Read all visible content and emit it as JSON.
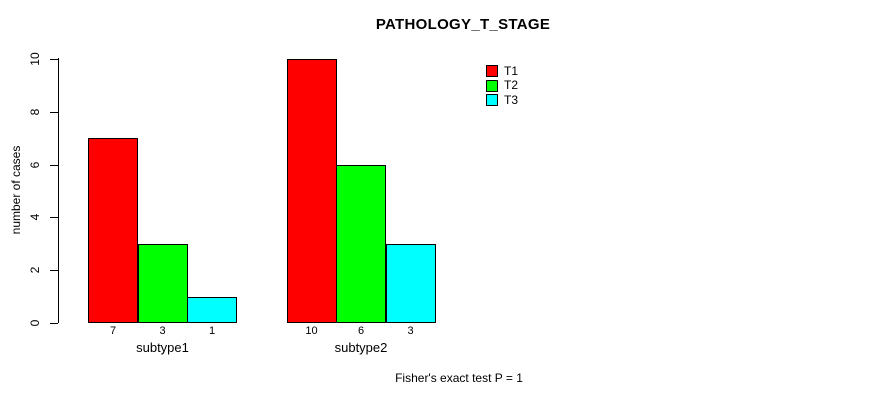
{
  "chart": {
    "background_color": "#ffffff",
    "axis_color": "#000000",
    "text_color": "#000000"
  },
  "chart_data": {
    "type": "bar",
    "title": "PATHOLOGY_T_STAGE",
    "xlabel": "",
    "ylabel": "number of cases",
    "categories": [
      "subtype1",
      "subtype2"
    ],
    "series": [
      {
        "name": "T1",
        "color": "#ff0000",
        "values": [
          7,
          10
        ]
      },
      {
        "name": "T2",
        "color": "#00ff00",
        "values": [
          3,
          6
        ]
      },
      {
        "name": "T3",
        "color": "#00ffff",
        "values": [
          1,
          3
        ]
      }
    ],
    "value_labels_under_bars": [
      [
        "7",
        "3",
        "1"
      ],
      [
        "10",
        "6",
        "3"
      ]
    ],
    "yticks": [
      0,
      2,
      4,
      6,
      8,
      10
    ],
    "ylim": [
      0,
      10
    ],
    "grid": false,
    "legend_position": "top-right",
    "legend_entries": [
      "T1",
      "T2",
      "T3"
    ],
    "annotation": "Fisher's exact test P = 1"
  }
}
